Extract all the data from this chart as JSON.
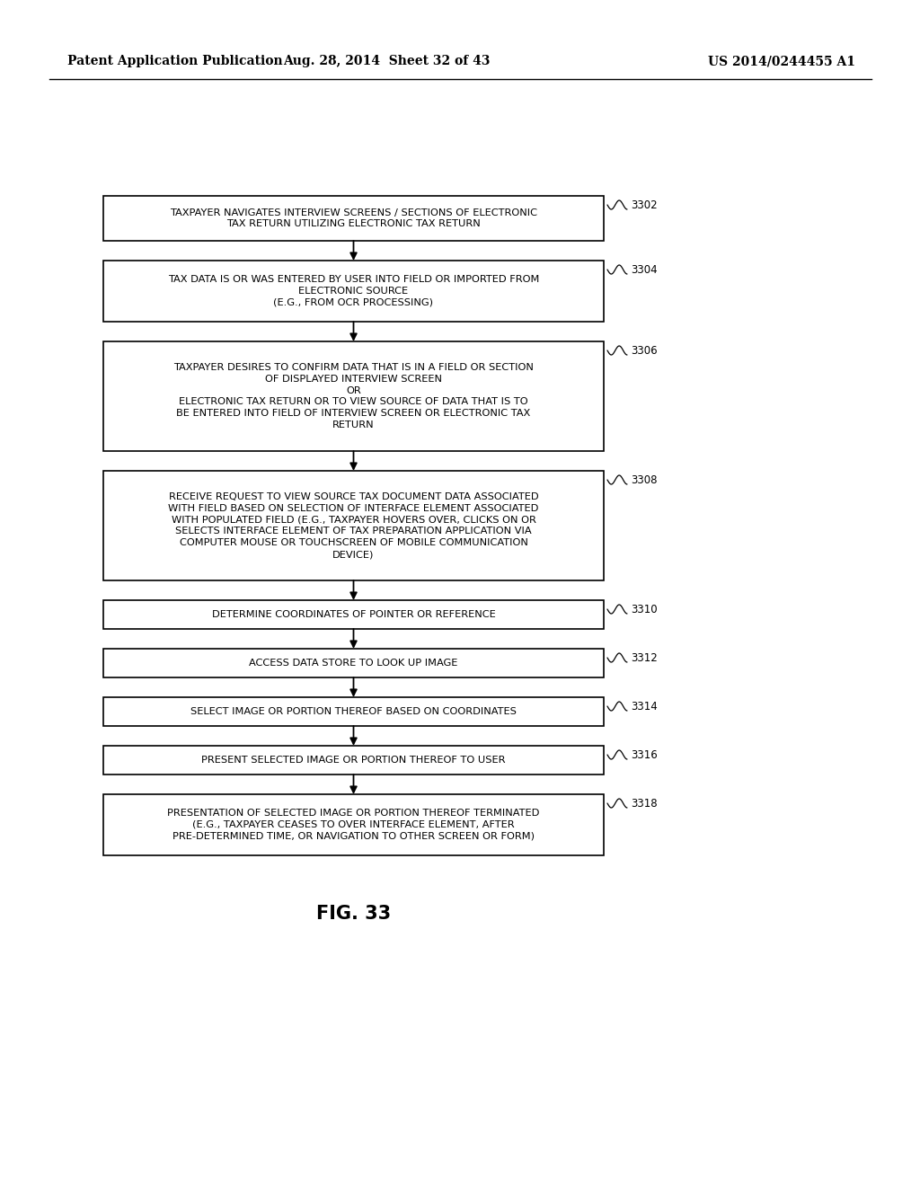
{
  "header_left": "Patent Application Publication",
  "header_mid": "Aug. 28, 2014  Sheet 32 of 43",
  "header_right": "US 2014/0244455 A1",
  "figure_label": "FIG. 33",
  "background_color": "#ffffff",
  "box_edge_color": "#000000",
  "text_color": "#000000",
  "boxes": [
    {
      "id": "3302",
      "label": "TAXPAYER NAVIGATES INTERVIEW SCREENS / SECTIONS OF ELECTRONIC\nTAX RETURN UTILIZING ELECTRONIC TAX RETURN",
      "ref": "3302",
      "lines": 2
    },
    {
      "id": "3304",
      "label": "TAX DATA IS OR WAS ENTERED BY USER INTO FIELD OR IMPORTED FROM\nELECTRONIC SOURCE\n(E.G., FROM OCR PROCESSING)",
      "ref": "3304",
      "lines": 3
    },
    {
      "id": "3306",
      "label": "TAXPAYER DESIRES TO CONFIRM DATA THAT IS IN A FIELD OR SECTION\nOF DISPLAYED INTERVIEW SCREEN\nOR\nELECTRONIC TAX RETURN OR TO VIEW SOURCE OF DATA THAT IS TO\nBE ENTERED INTO FIELD OF INTERVIEW SCREEN OR ELECTRONIC TAX\nRETURN",
      "ref": "3306",
      "lines": 6
    },
    {
      "id": "3308",
      "label": "RECEIVE REQUEST TO VIEW SOURCE TAX DOCUMENT DATA ASSOCIATED\nWITH FIELD BASED ON SELECTION OF INTERFACE ELEMENT ASSOCIATED\nWITH POPULATED FIELD (E.G., TAXPAYER HOVERS OVER, CLICKS ON OR\nSELECTS INTERFACE ELEMENT OF TAX PREPARATION APPLICATION VIA\nCOMPUTER MOUSE OR TOUCHSCREEN OF MOBILE COMMUNICATION\nDEVICE)",
      "ref": "3308",
      "lines": 6
    },
    {
      "id": "3310",
      "label": "DETERMINE COORDINATES OF POINTER OR REFERENCE",
      "ref": "3310",
      "lines": 1
    },
    {
      "id": "3312",
      "label": "ACCESS DATA STORE TO LOOK UP IMAGE",
      "ref": "3312",
      "lines": 1
    },
    {
      "id": "3314",
      "label": "SELECT IMAGE OR PORTION THEREOF BASED ON COORDINATES",
      "ref": "3314",
      "lines": 1
    },
    {
      "id": "3316",
      "label": "PRESENT SELECTED IMAGE OR PORTION THEREOF TO USER",
      "ref": "3316",
      "lines": 1
    },
    {
      "id": "3318",
      "label": "PRESENTATION OF SELECTED IMAGE OR PORTION THEREOF TERMINATED\n(E.G., TAXPAYER CEASES TO OVER INTERFACE ELEMENT, AFTER\nPRE-DETERMINED TIME, OR NAVIGATION TO OTHER SCREEN OR FORM)",
      "ref": "3318",
      "lines": 3
    }
  ]
}
